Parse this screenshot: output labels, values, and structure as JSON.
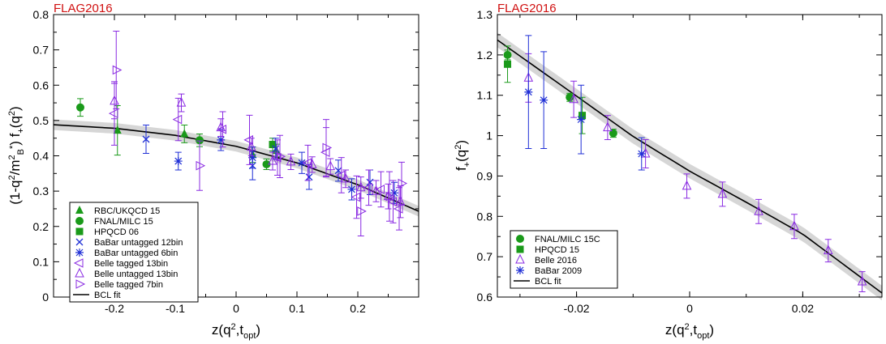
{
  "chart_data": [
    {
      "type": "scatter",
      "watermark": "FLAG2016",
      "xlabel": "z(q², t_opt)",
      "ylabel": "(1-q²/m²_B*) f+(q²)",
      "xlim": [
        -0.3,
        0.3
      ],
      "ylim": [
        0,
        0.8
      ],
      "xticks": [
        -0.2,
        -0.1,
        0,
        0.1,
        0.2
      ],
      "xtick_labels": [
        "-0.2",
        "-0.1",
        "0",
        "0.1",
        "0.2"
      ],
      "yticks": [
        0,
        0.1,
        0.2,
        0.3,
        0.4,
        0.5,
        0.6,
        0.7,
        0.8
      ],
      "ytick_labels": [
        "0",
        "0.1",
        "0.2",
        "0.3",
        "0.4",
        "0.5",
        "0.6",
        "0.7",
        "0.8"
      ],
      "legend_position": "bottom-left",
      "fit": {
        "name": "BCL fit",
        "x": [
          -0.3,
          -0.2,
          -0.1,
          0.0,
          0.1,
          0.2,
          0.3
        ],
        "y": [
          0.488,
          0.478,
          0.458,
          0.427,
          0.38,
          0.318,
          0.243
        ],
        "band": 0.015
      },
      "series": [
        {
          "name": "RBC/UKQCD 15",
          "marker": "triangle-filled",
          "color": "#1a9a1a",
          "points": [
            [
              -0.195,
              0.472,
              0.07
            ],
            [
              -0.085,
              0.462,
              0.025
            ],
            [
              0.027,
              0.403,
              0.022
            ],
            [
              0.066,
              0.415,
              0.018
            ]
          ]
        },
        {
          "name": "FNAL/MILC 15",
          "marker": "circle-filled",
          "color": "#1a9a1a",
          "points": [
            [
              -0.256,
              0.537,
              0.025
            ],
            [
              -0.06,
              0.444,
              0.018
            ],
            [
              0.05,
              0.376,
              0.015
            ]
          ]
        },
        {
          "name": "HPQCD 06",
          "marker": "square-filled",
          "color": "#1a9a1a",
          "points": [
            [
              0.06,
              0.432,
              0.018
            ]
          ]
        },
        {
          "name": "BaBar untagged 12bin",
          "marker": "x",
          "color": "#1f2fd6",
          "points": [
            [
              -0.148,
              0.447,
              0.04
            ],
            [
              0.027,
              0.372,
              0.04
            ],
            [
              0.065,
              0.42,
              0.03
            ],
            [
              0.12,
              0.34,
              0.035
            ],
            [
              0.168,
              0.358,
              0.03
            ],
            [
              0.22,
              0.325,
              0.035
            ]
          ]
        },
        {
          "name": "BaBar untagged 6bin",
          "marker": "asterisk",
          "color": "#1f2fd6",
          "points": [
            [
              -0.095,
              0.385,
              0.025
            ],
            [
              -0.025,
              0.445,
              0.03
            ],
            [
              0.027,
              0.395,
              0.03
            ],
            [
              0.108,
              0.38,
              0.03
            ],
            [
              0.19,
              0.305,
              0.03
            ],
            [
              0.26,
              0.295,
              0.03
            ]
          ]
        },
        {
          "name": "Belle tagged 13bin",
          "marker": "triangle-left-open",
          "color": "#8a2be2",
          "points": [
            [
              -0.2,
              0.52,
              0.09
            ],
            [
              -0.095,
              0.503,
              0.06
            ],
            [
              -0.022,
              0.475,
              0.05
            ],
            [
              0.022,
              0.445,
              0.07
            ],
            [
              0.068,
              0.395,
              0.05
            ],
            [
              0.118,
              0.38,
              0.05
            ],
            [
              0.148,
              0.41,
              0.07
            ],
            [
              0.173,
              0.345,
              0.05
            ],
            [
              0.198,
              0.283,
              0.06
            ],
            [
              0.218,
              0.31,
              0.05
            ],
            [
              0.238,
              0.305,
              0.05
            ],
            [
              0.258,
              0.27,
              0.06
            ],
            [
              0.268,
              0.25,
              0.06
            ]
          ]
        },
        {
          "name": "Belle untagged 13bin",
          "marker": "triangle-up-open",
          "color": "#8a2be2",
          "points": [
            [
              -0.2,
              0.555,
              0.05
            ],
            [
              -0.09,
              0.55,
              0.025
            ],
            [
              -0.025,
              0.48,
              0.025
            ],
            [
              0.025,
              0.425,
              0.025
            ],
            [
              0.06,
              0.385,
              0.025
            ],
            [
              0.09,
              0.383,
              0.022
            ],
            [
              0.125,
              0.375,
              0.022
            ],
            [
              0.155,
              0.37,
              0.022
            ],
            [
              0.18,
              0.335,
              0.025
            ],
            [
              0.205,
              0.31,
              0.03
            ],
            [
              0.23,
              0.3,
              0.03
            ],
            [
              0.25,
              0.285,
              0.035
            ],
            [
              0.27,
              0.27,
              0.045
            ]
          ]
        },
        {
          "name": "Belle tagged 7bin",
          "marker": "triangle-right-open",
          "color": "#8a2be2",
          "points": [
            [
              -0.197,
              0.643,
              0.11
            ],
            [
              -0.06,
              0.372,
              0.07
            ],
            [
              0.072,
              0.398,
              0.06
            ],
            [
              0.148,
              0.423,
              0.08
            ],
            [
              0.205,
              0.243,
              0.07
            ],
            [
              0.252,
              0.285,
              0.07
            ],
            [
              0.272,
              0.322,
              0.06
            ]
          ]
        }
      ]
    },
    {
      "type": "scatter",
      "watermark": "FLAG2016",
      "xlabel": "z(q², t_opt)",
      "ylabel": "f+(q²)",
      "xlim": [
        -0.034,
        0.034
      ],
      "ylim": [
        0.6,
        1.3
      ],
      "xticks": [
        -0.02,
        0,
        0.02
      ],
      "xtick_labels": [
        "-0.02",
        "0",
        "0.02"
      ],
      "yticks": [
        0.6,
        0.7,
        0.8,
        0.9,
        1.0,
        1.1,
        1.2,
        1.3
      ],
      "ytick_labels": [
        "0.6",
        "0.7",
        "0.8",
        "0.9",
        "1",
        "1.1",
        "1.2",
        "1.3"
      ],
      "legend_position": "bottom-left",
      "fit": {
        "name": "BCL fit",
        "x": [
          -0.034,
          -0.02,
          -0.01,
          0.0,
          0.01,
          0.02,
          0.034
        ],
        "y": [
          1.237,
          1.098,
          0.998,
          0.912,
          0.835,
          0.756,
          0.61
        ],
        "band": 0.018
      },
      "series": [
        {
          "name": "FNAL/MILC 15C",
          "marker": "circle-filled",
          "color": "#1a9a1a",
          "points": [
            [
              -0.0322,
              1.2,
              0.012
            ],
            [
              -0.0212,
              1.095,
              0.01
            ],
            [
              -0.0135,
              1.006,
              0.01
            ]
          ]
        },
        {
          "name": "HPQCD 15",
          "marker": "square-filled",
          "color": "#1a9a1a",
          "points": [
            [
              -0.0322,
              1.177,
              0.045
            ],
            [
              -0.019,
              1.05,
              0.045
            ]
          ]
        },
        {
          "name": "Belle 2016",
          "marker": "triangle-up-open",
          "color": "#8a2be2",
          "points": [
            [
              -0.0285,
              1.143,
              0.06
            ],
            [
              -0.0205,
              1.09,
              0.045
            ],
            [
              -0.0145,
              1.02,
              0.03
            ],
            [
              -0.0078,
              0.955,
              0.035
            ],
            [
              -0.0005,
              0.875,
              0.03
            ],
            [
              0.0058,
              0.855,
              0.03
            ],
            [
              0.0122,
              0.812,
              0.03
            ],
            [
              0.0185,
              0.775,
              0.03
            ],
            [
              0.0245,
              0.715,
              0.028
            ],
            [
              0.0305,
              0.638,
              0.025
            ]
          ]
        },
        {
          "name": "BaBar 2009",
          "marker": "asterisk",
          "color": "#1f2fd6",
          "points": [
            [
              -0.0285,
              1.108,
              0.14
            ],
            [
              -0.0258,
              1.088,
              0.12
            ],
            [
              -0.0192,
              1.04,
              0.085
            ],
            [
              -0.0085,
              0.955,
              0.04
            ]
          ]
        }
      ]
    }
  ]
}
